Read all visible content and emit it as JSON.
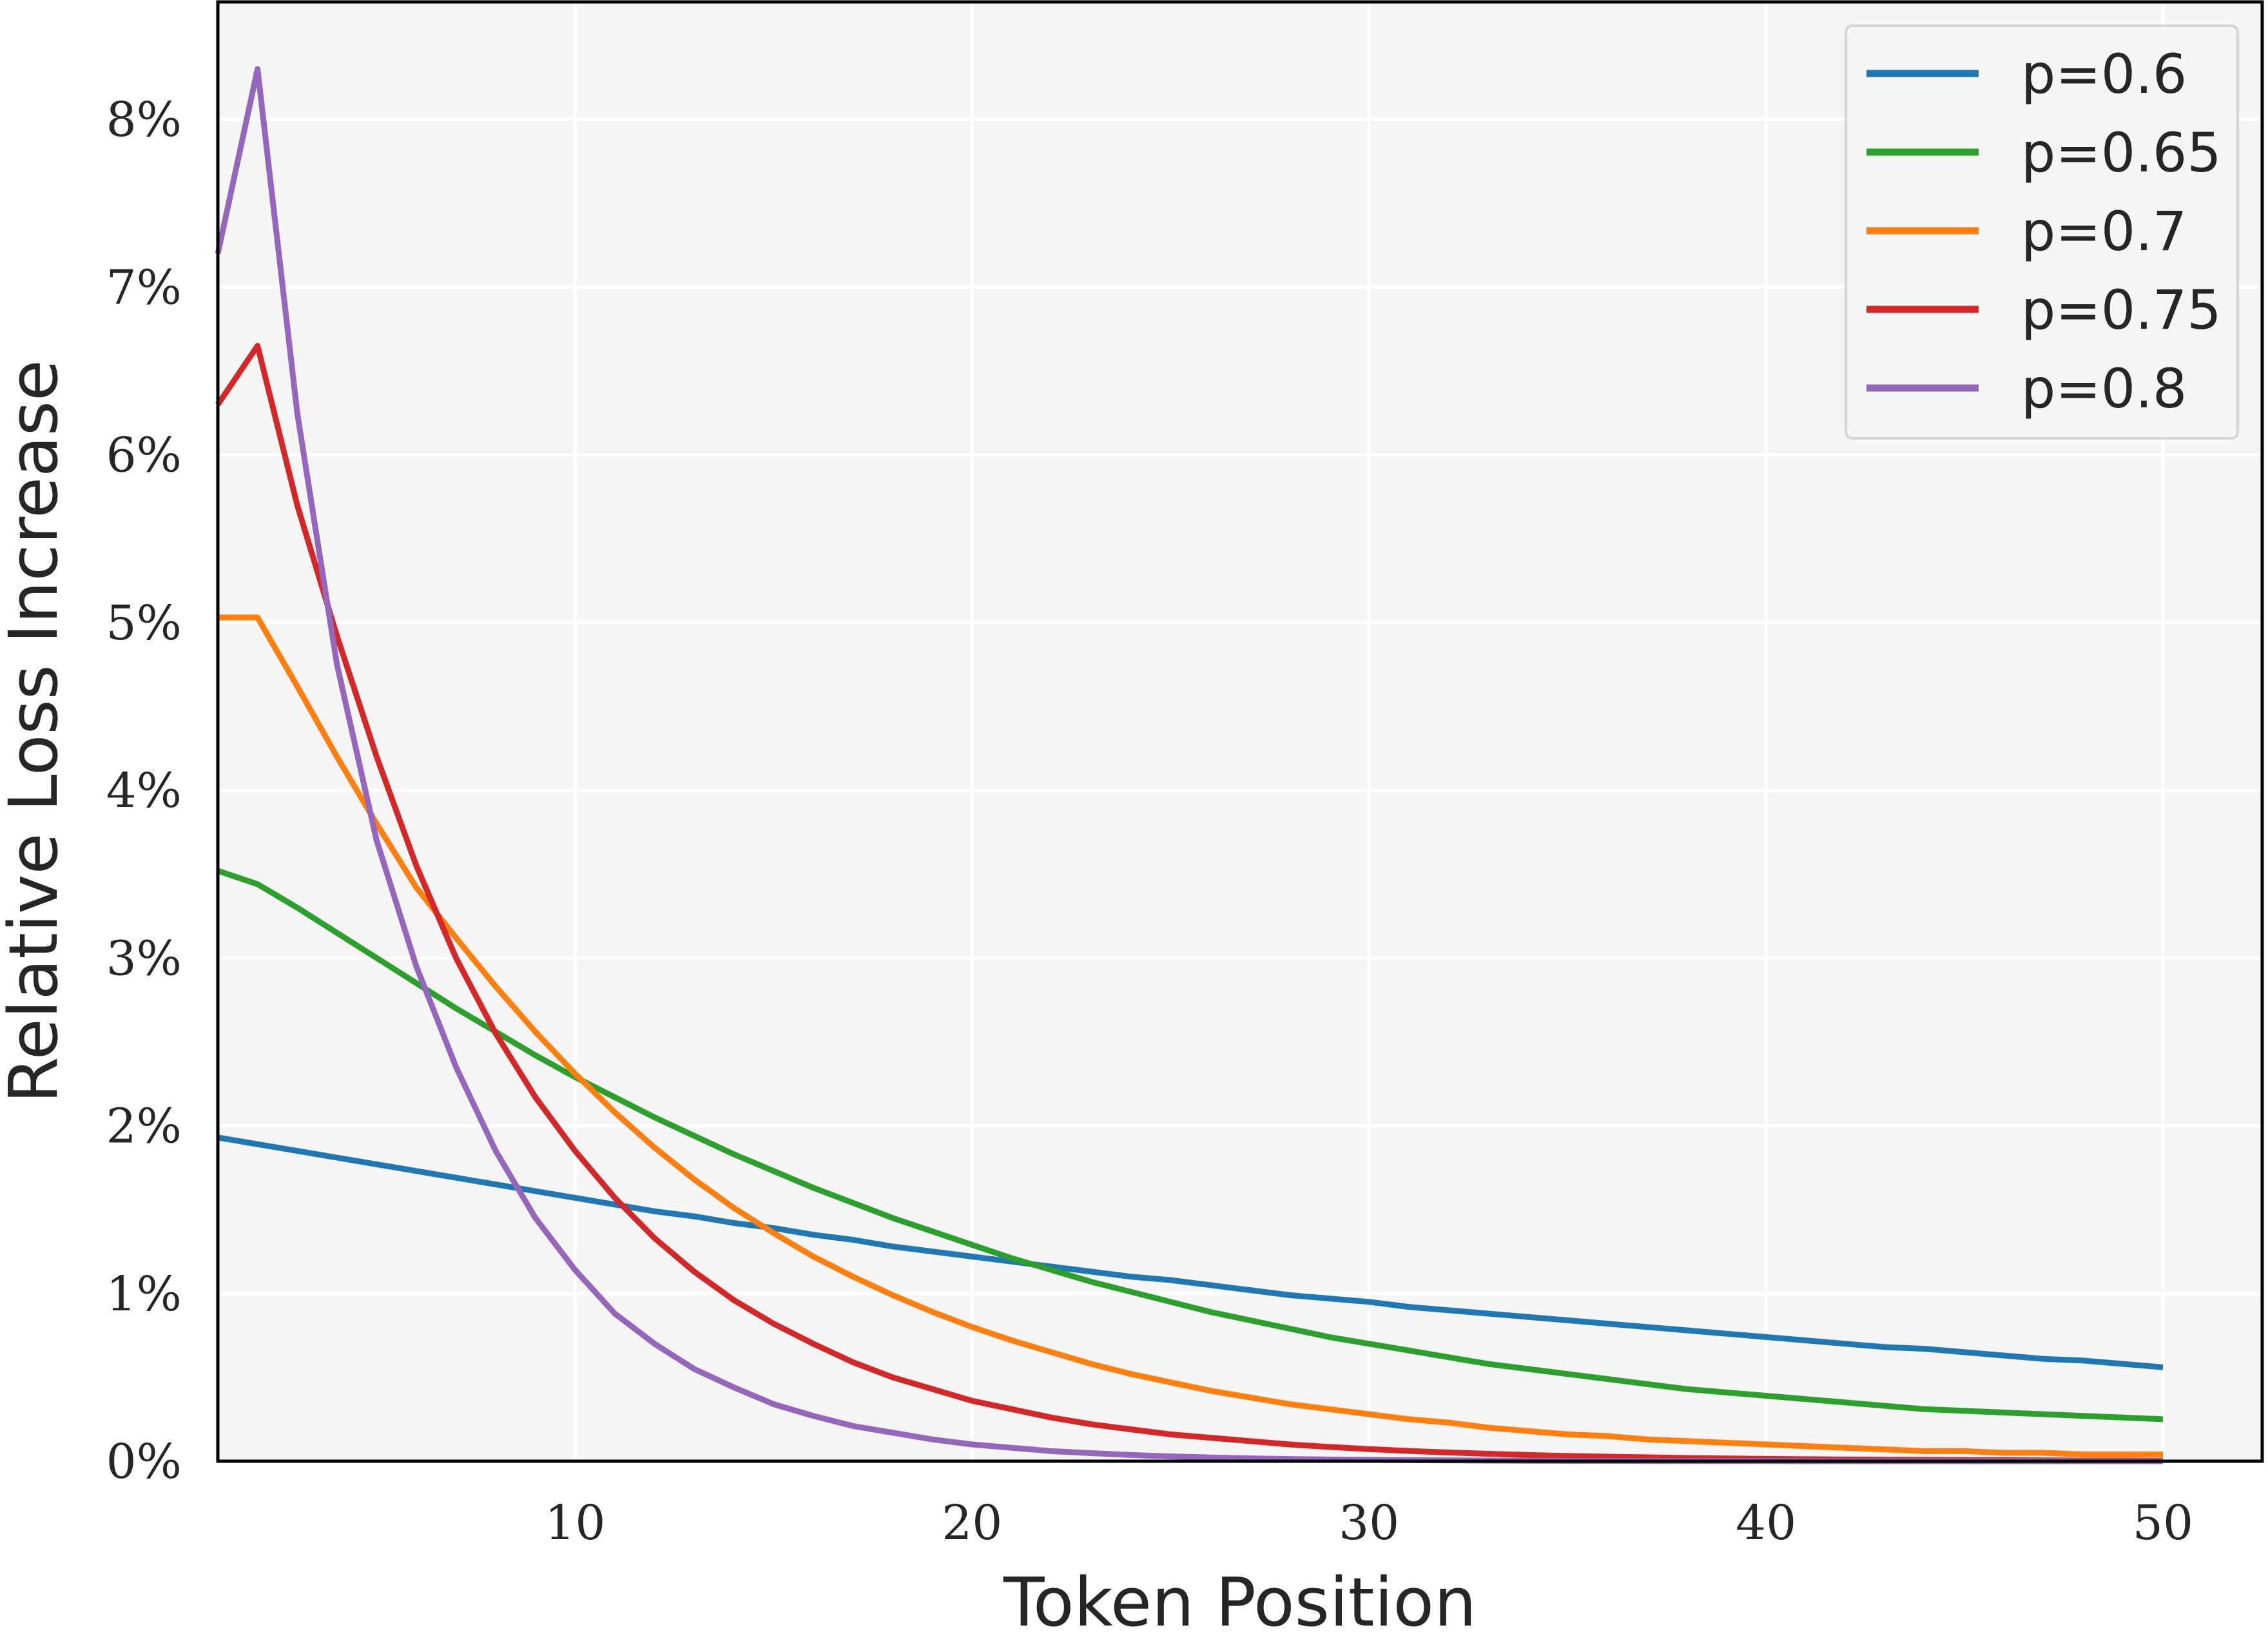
{
  "chart_data": {
    "type": "line",
    "title": "",
    "xlabel": "Token Position",
    "ylabel": "Relative Loss Increase",
    "xlim": [
      1,
      52.5
    ],
    "ylim": [
      0,
      8.7
    ],
    "xticks": [
      10,
      20,
      30,
      40,
      50
    ],
    "xtick_labels": [
      "10",
      "20",
      "30",
      "40",
      "50"
    ],
    "yticks": [
      0,
      1,
      2,
      3,
      4,
      5,
      6,
      7,
      8
    ],
    "ytick_labels": [
      "0%",
      "1%",
      "2%",
      "3%",
      "4%",
      "5%",
      "6%",
      "7%",
      "8%"
    ],
    "grid": true,
    "legend_position": "top-right",
    "x": [
      1,
      2,
      3,
      4,
      5,
      6,
      7,
      8,
      9,
      10,
      11,
      12,
      13,
      14,
      15,
      16,
      17,
      18,
      19,
      20,
      21,
      22,
      23,
      24,
      25,
      26,
      27,
      28,
      29,
      30,
      31,
      32,
      33,
      34,
      35,
      36,
      37,
      38,
      39,
      40,
      41,
      42,
      43,
      44,
      45,
      46,
      47,
      48,
      49,
      50
    ],
    "series": [
      {
        "name": "p=0.6",
        "color": "#1f77b4",
        "values": [
          1.93,
          1.89,
          1.85,
          1.81,
          1.77,
          1.73,
          1.69,
          1.65,
          1.61,
          1.57,
          1.53,
          1.49,
          1.46,
          1.42,
          1.39,
          1.35,
          1.32,
          1.28,
          1.25,
          1.22,
          1.19,
          1.16,
          1.13,
          1.1,
          1.08,
          1.05,
          1.02,
          0.99,
          0.97,
          0.95,
          0.92,
          0.9,
          0.88,
          0.86,
          0.84,
          0.82,
          0.8,
          0.78,
          0.76,
          0.74,
          0.72,
          0.7,
          0.68,
          0.67,
          0.65,
          0.63,
          0.61,
          0.6,
          0.58,
          0.56
        ]
      },
      {
        "name": "p=0.65",
        "color": "#2ca02c",
        "values": [
          3.52,
          3.44,
          3.3,
          3.15,
          3.0,
          2.85,
          2.7,
          2.56,
          2.42,
          2.29,
          2.17,
          2.05,
          1.94,
          1.83,
          1.73,
          1.63,
          1.54,
          1.45,
          1.37,
          1.29,
          1.21,
          1.14,
          1.07,
          1.01,
          0.95,
          0.89,
          0.84,
          0.79,
          0.74,
          0.7,
          0.66,
          0.62,
          0.58,
          0.55,
          0.52,
          0.49,
          0.46,
          0.43,
          0.41,
          0.39,
          0.37,
          0.35,
          0.33,
          0.31,
          0.3,
          0.29,
          0.28,
          0.27,
          0.26,
          0.25
        ]
      },
      {
        "name": "p=0.7",
        "color": "#ff7f0e",
        "values": [
          5.03,
          5.03,
          4.62,
          4.2,
          3.8,
          3.42,
          3.12,
          2.83,
          2.56,
          2.31,
          2.08,
          1.87,
          1.68,
          1.51,
          1.36,
          1.22,
          1.1,
          0.99,
          0.89,
          0.8,
          0.72,
          0.65,
          0.58,
          0.52,
          0.47,
          0.42,
          0.38,
          0.34,
          0.31,
          0.28,
          0.25,
          0.23,
          0.2,
          0.18,
          0.16,
          0.15,
          0.13,
          0.12,
          0.11,
          0.1,
          0.09,
          0.08,
          0.07,
          0.06,
          0.06,
          0.05,
          0.05,
          0.04,
          0.04,
          0.04
        ]
      },
      {
        "name": "p=0.75",
        "color": "#d62728",
        "values": [
          6.3,
          6.65,
          5.7,
          4.92,
          4.2,
          3.55,
          3.0,
          2.55,
          2.17,
          1.85,
          1.57,
          1.33,
          1.13,
          0.96,
          0.82,
          0.7,
          0.59,
          0.5,
          0.43,
          0.36,
          0.31,
          0.26,
          0.22,
          0.19,
          0.16,
          0.14,
          0.12,
          0.1,
          0.085,
          0.072,
          0.061,
          0.052,
          0.044,
          0.037,
          0.031,
          0.027,
          0.023,
          0.019,
          0.016,
          0.014,
          0.012,
          0.01,
          0.009,
          0.008,
          0.007,
          0.006,
          0.005,
          0.004,
          0.004,
          0.003
        ]
      },
      {
        "name": "p=0.8",
        "color": "#9467bd",
        "values": [
          7.2,
          8.3,
          6.25,
          4.75,
          3.7,
          2.95,
          2.35,
          1.85,
          1.45,
          1.14,
          0.88,
          0.7,
          0.55,
          0.44,
          0.34,
          0.27,
          0.21,
          0.17,
          0.13,
          0.1,
          0.08,
          0.06,
          0.048,
          0.037,
          0.029,
          0.022,
          0.017,
          0.013,
          0.01,
          0.008,
          0.006,
          0.005,
          0.004,
          0.003,
          0.002,
          0.002,
          0.001,
          0.001,
          0.001,
          0.001,
          0,
          0,
          0,
          0,
          0,
          0,
          0,
          0,
          0,
          0
        ]
      }
    ]
  }
}
